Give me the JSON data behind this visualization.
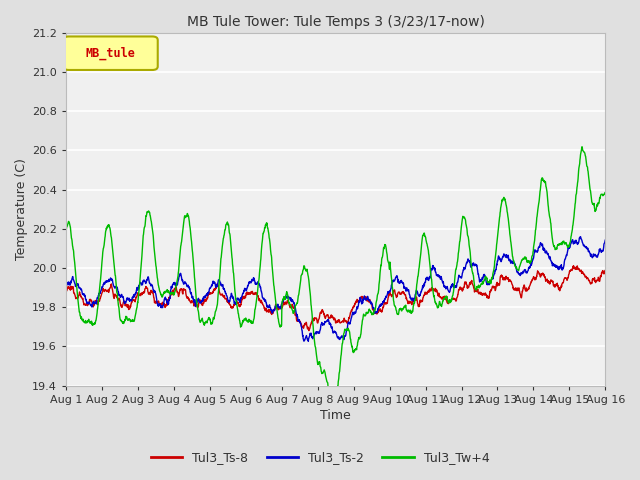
{
  "title": "MB Tule Tower: Tule Temps 3 (3/23/17-now)",
  "xlabel": "Time",
  "ylabel": "Temperature (C)",
  "ylim": [
    19.4,
    21.2
  ],
  "xlim": [
    0,
    15
  ],
  "xtick_labels": [
    "Aug 1",
    "Aug 2",
    "Aug 3",
    "Aug 4",
    "Aug 5",
    "Aug 6",
    "Aug 7",
    "Aug 8",
    "Aug 9",
    "Aug 10",
    "Aug 11",
    "Aug 12",
    "Aug 13",
    "Aug 14",
    "Aug 15",
    "Aug 16"
  ],
  "ytick_vals": [
    19.4,
    19.6,
    19.8,
    20.0,
    20.2,
    20.4,
    20.6,
    20.8,
    21.0,
    21.2
  ],
  "bg_color": "#e0e0e0",
  "plot_bg_color": "#f0f0f0",
  "grid_color": "#ffffff",
  "legend_box_color": "#ffff99",
  "legend_box_text": "MB_tule",
  "series": [
    {
      "name": "Tul3_Ts-8",
      "color": "#cc0000",
      "linewidth": 1.0
    },
    {
      "name": "Tul3_Ts-2",
      "color": "#0000cc",
      "linewidth": 1.0
    },
    {
      "name": "Tul3_Tw+4",
      "color": "#00bb00",
      "linewidth": 1.0
    }
  ]
}
